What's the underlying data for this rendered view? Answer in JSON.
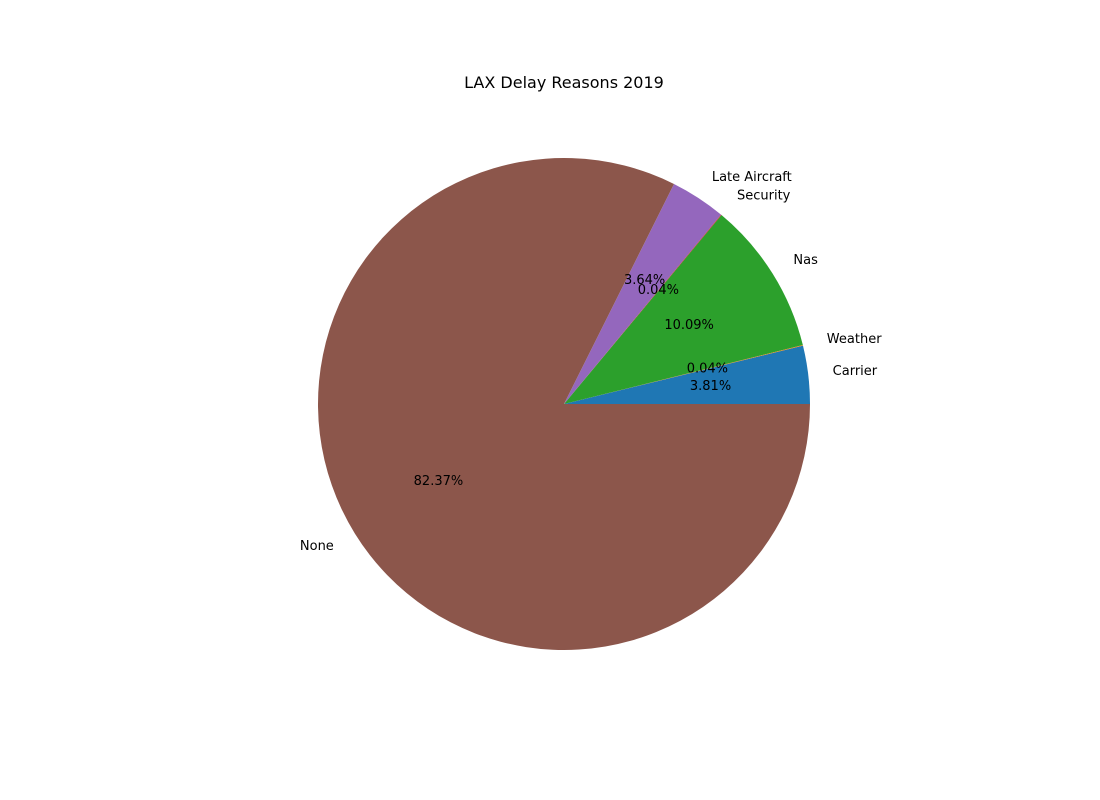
{
  "chart_data": {
    "type": "pie",
    "title": "LAX Delay Reasons 2019",
    "categories": [
      "Carrier",
      "Weather",
      "Nas",
      "Security",
      "Late Aircraft",
      "None"
    ],
    "values": [
      3.81,
      0.04,
      10.09,
      0.04,
      3.64,
      82.37
    ],
    "value_labels": [
      "3.81%",
      "0.04%",
      "10.09%",
      "0.04%",
      "3.64%",
      "82.37%"
    ],
    "colors": [
      "#1f77b4",
      "#ff7f0e",
      "#2ca02c",
      "#d62728",
      "#9467bd",
      "#8c564b"
    ],
    "start_angle_deg": 0,
    "direction": "counterclockwise",
    "legend": "none"
  }
}
